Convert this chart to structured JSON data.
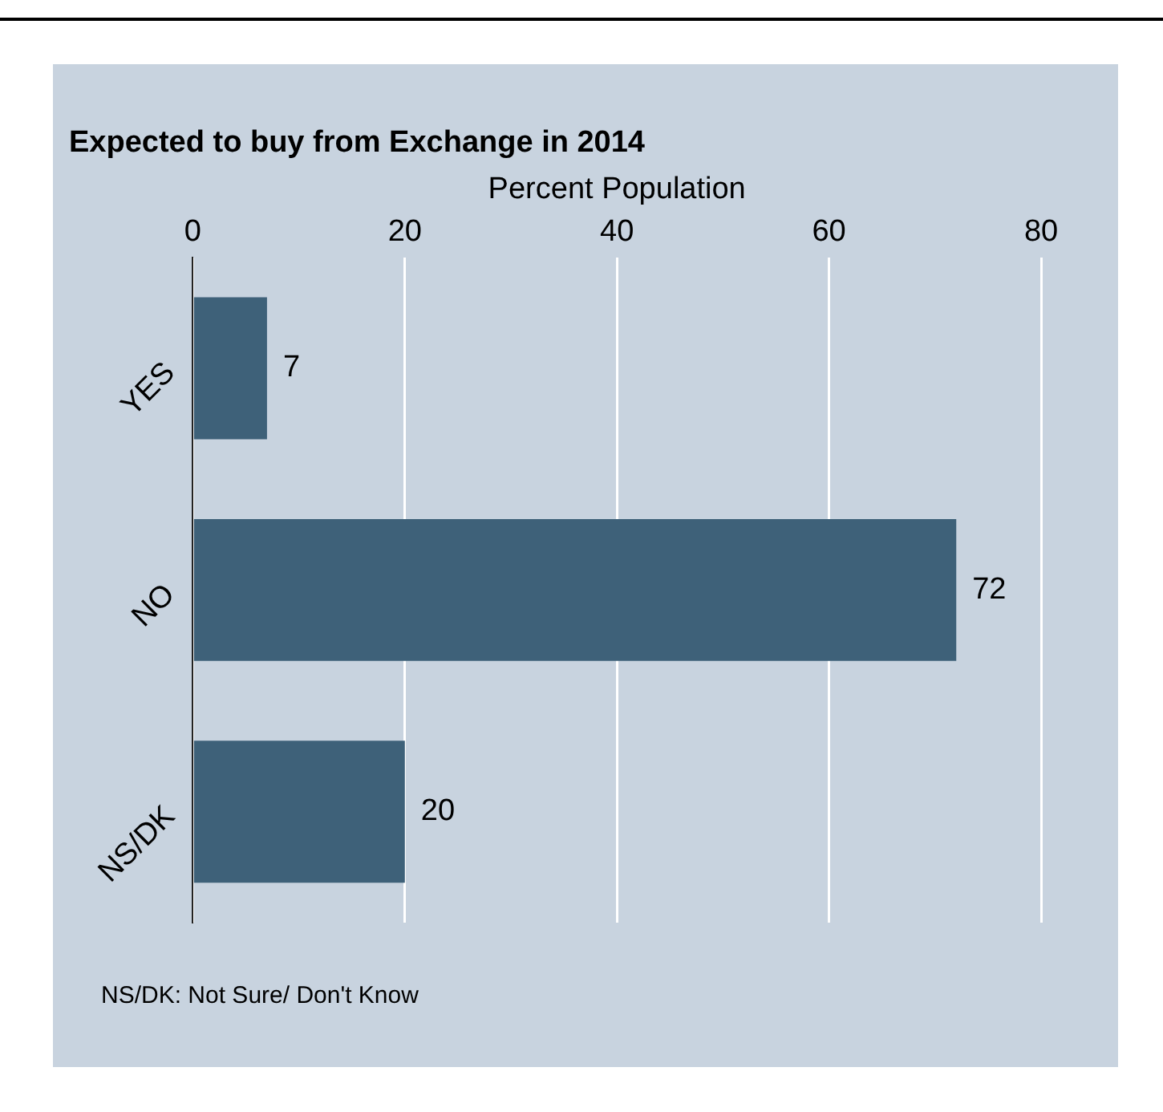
{
  "chart_data": {
    "type": "bar",
    "orientation": "horizontal",
    "title": "Expected to buy from Exchange in 2014",
    "xlabel": "Percent Population",
    "categories": [
      "YES",
      "NO",
      "NS/DK"
    ],
    "values": [
      7,
      72,
      20
    ],
    "color": "#3e6179",
    "xlim": [
      0,
      80
    ],
    "xticks": [
      0,
      20,
      40,
      60,
      80
    ],
    "grid": "x",
    "data_labels": true,
    "annotations": [
      "NS/DK: Not Sure/ Don't Know"
    ]
  }
}
